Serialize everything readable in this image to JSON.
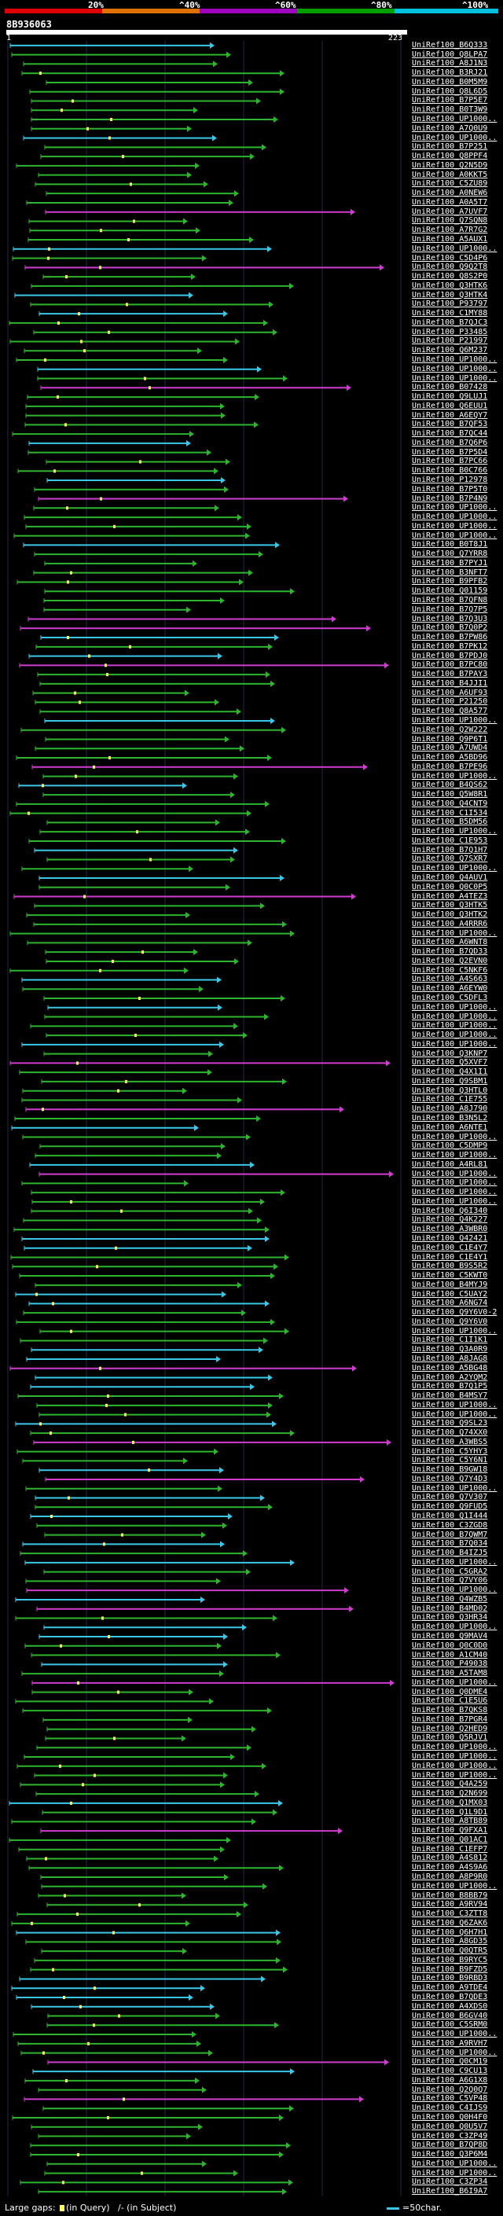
{
  "scale": {
    "ticks": [
      "20%",
      "^40%",
      "^60%",
      "^80%",
      "^100%"
    ],
    "colors": [
      "#e00000",
      "#e07000",
      "#a000c0",
      "#00a000",
      "#00c0e0"
    ]
  },
  "query": {
    "id": "8B936063",
    "start": "1",
    "end": "223"
  },
  "colors": {
    "green": "#2db52d",
    "cyan": "#3ac8e8",
    "magenta": "#d03cd0",
    "grid": "#1c2a4a",
    "dot": "#ffff66"
  },
  "hits": [
    "UniRef100_B6Q333",
    "UniRef100_Q8LPA7",
    "UniRef100_A8J1N3",
    "UniRef100_B3RJ21",
    "UniRef100_B0M5M9",
    "UniRef100_Q8L6D5",
    "UniRef100_B7P5E7",
    "UniRef100_B0T3W9",
    "UniRef100_UP1000..",
    "UniRef100_A7Q0U9",
    "UniRef100_UP1000..",
    "UniRef100_B7P251",
    "UniRef100_Q8PPF4",
    "UniRef100_Q2N5D9",
    "UniRef100_A0KKT5",
    "UniRef100_C5ZU89",
    "UniRef100_A0NEW6",
    "UniRef100_A0A5T7",
    "UniRef100_A7UVF7",
    "UniRef100_Q7SQN8",
    "UniRef100_A7R7G2",
    "UniRef100_A5AUX1",
    "UniRef100_UP1000..",
    "UniRef100_C5D4P6",
    "UniRef100_Q9Q2T8",
    "UniRef100_Q8S2P0",
    "UniRef100_Q3HTK6",
    "UniRef100_Q3HTK4",
    "UniRef100_P93797",
    "UniRef100_C1MY88",
    "UniRef100_B7QJC3",
    "UniRef100_P33485",
    "UniRef100_P21997",
    "UniRef100_Q6M237",
    "UniRef100_UP1000..",
    "UniRef100_UP1000..",
    "UniRef100_UP1000..",
    "UniRef100_B07428",
    "UniRef100_Q9LUJ1",
    "UniRef100_Q6EUU1",
    "UniRef100_A6EQY7",
    "UniRef100_B7QF53",
    "UniRef100_B7QC44",
    "UniRef100_B7Q6P6",
    "UniRef100_B7P5D4",
    "UniRef100_B7PC66",
    "UniRef100_B0C766",
    "UniRef100_P12978",
    "UniRef100_B7P5T0",
    "UniRef100_B7P4N9",
    "UniRef100_UP1000..",
    "UniRef100_UP1000..",
    "UniRef100_UP1000..",
    "UniRef100_UP1000..",
    "UniRef100_B0T8J1",
    "UniRef100_Q7YRR8",
    "UniRef100_B7PYJ1",
    "UniRef100_B3NFT7",
    "UniRef100_B9PFB2",
    "UniRef100_Q01159",
    "UniRef100_B7QFN8",
    "UniRef100_B7Q7P5",
    "UniRef100_B7Q3U3",
    "UniRef100_B7Q0P2",
    "UniRef100_B7PW86",
    "UniRef100_B7PK12",
    "UniRef100_B7PDJ0",
    "UniRef100_B7PC80",
    "UniRef100_B7PAY3",
    "UniRef100_B4JJI1",
    "UniRef100_A6UF93",
    "UniRef100_P21250",
    "UniRef100_Q8A577",
    "UniRef100_UP1000..",
    "UniRef100_Q2W222",
    "UniRef100_Q9P6T1",
    "UniRef100_A7UWD4",
    "UniRef100_A5BD96",
    "UniRef100_B7PE96",
    "UniRef100_UP1000..",
    "UniRef100_B4QS62",
    "UniRef100_Q5W8R1",
    "UniRef100_Q4CNT9",
    "UniRef100_C1I534",
    "UniRef100_B5DM56",
    "UniRef100_UP1000..",
    "UniRef100_C1E953",
    "UniRef100_B7Q1H7",
    "UniRef100_Q7SXR7",
    "UniRef100_UP1000..",
    "UniRef100_Q4AUV1",
    "UniRef100_Q0C0P5",
    "UniRef100_A4TEZ3",
    "UniRef100_Q3HTK5",
    "UniRef100_Q3HTK2",
    "UniRef100_A4RRR6",
    "UniRef100_UP1000..",
    "UniRef100_A6WNT8",
    "UniRef100_B7QD33",
    "UniRef100_Q2EVN0",
    "UniRef100_C5NKF6",
    "UniRef100_A4S663",
    "UniRef100_A6EYW0",
    "UniRef100_C5DFL3",
    "UniRef100_UP1000..",
    "UniRef100_UP1000..",
    "UniRef100_UP1000..",
    "UniRef100_UP1000..",
    "UniRef100_UP1000..",
    "UniRef100_Q3KNP7",
    "UniRef100_Q5XVF7",
    "UniRef100_Q4X1I1",
    "UniRef100_Q9SBM1",
    "UniRef100_Q3HTL0",
    "UniRef100_C1E755",
    "UniRef100_A8J790",
    "UniRef100_B3N5L2",
    "UniRef100_A6NTE1",
    "UniRef100_UP1000..",
    "UniRef100_C5DMP9",
    "UniRef100_UP1000..",
    "UniRef100_A4RL81",
    "UniRef100_UP1000..",
    "UniRef100_UP1000..",
    "UniRef100_UP1000..",
    "UniRef100_UP1000..",
    "UniRef100_Q6I340",
    "UniRef100_Q4K227",
    "UniRef100_A3WBR0",
    "UniRef100_Q42421",
    "UniRef100_C1E4Y7",
    "UniRef100_C1E4Y1",
    "UniRef100_B9S5R2",
    "UniRef100_C5KWT0",
    "UniRef100_B4MYJ9",
    "UniRef100_C5UAY2",
    "UniRef100_A6NG74",
    "UniRef100_Q9Y6V0-2",
    "UniRef100_Q9Y6V0",
    "UniRef100_UP1000..",
    "UniRef100_C1I1K1",
    "UniRef100_Q3A0R9",
    "UniRef100_A8JAG8",
    "UniRef100_A5BG48",
    "UniRef100_A2YQM2",
    "UniRef100_B7Q1P5",
    "UniRef100_B4MSY7",
    "UniRef100_UP1000..",
    "UniRef100_UP1000..",
    "UniRef100_Q9SL23",
    "UniRef100_Q74XX0",
    "UniRef100_A3WBS5",
    "UniRef100_C5YHY3",
    "UniRef100_C5Y6N1",
    "UniRef100_B9GW18",
    "UniRef100_Q7Y4D3",
    "UniRef100_UP1000..",
    "UniRef100_Q7V307",
    "UniRef100_Q9FUD5",
    "UniRef100_Q1I444",
    "UniRef100_C3ZGD8",
    "UniRef100_B7QWM7",
    "UniRef100_B7Q034",
    "UniRef100_B4IZJ5",
    "UniRef100_UP1000..",
    "UniRef100_C5GRA2",
    "UniRef100_Q7VY06",
    "UniRef100_UP1000..",
    "UniRef100_Q4WZB5",
    "UniRef100_B4MD02",
    "UniRef100_Q3HR34",
    "UniRef100_UP1000..",
    "UniRef100_Q9MAV4",
    "UniRef100_Q0C0D0",
    "UniRef100_A1CM40",
    "UniRef100_P49038",
    "UniRef100_A5TAM8",
    "UniRef100_UP1000..",
    "UniRef100_Q0DME4",
    "UniRef100_C1E5U6",
    "UniRef100_B7QKS8",
    "UniRef100_B7PGR4",
    "UniRef100_Q2HED9",
    "UniRef100_Q5RJV1",
    "UniRef100_UP1000..",
    "UniRef100_UP1000..",
    "UniRef100_UP1000..",
    "UniRef100_UP1000..",
    "UniRef100_Q4A259",
    "UniRef100_Q2N699",
    "UniRef100_Q1MX03",
    "UniRef100_Q1L9D1",
    "UniRef100_A8TB89",
    "UniRef100_Q9FXA1",
    "UniRef100_Q01AC1",
    "UniRef100_C1EFP7",
    "UniRef100_A4S812",
    "UniRef100_A4S9A6",
    "UniRef100_A8P9R0",
    "UniRef100_UP1000..",
    "UniRef100_B8BB79",
    "UniRef100_A9RV94",
    "UniRef100_C3ZTT8",
    "UniRef100_Q6ZAK6",
    "UniRef100_Q6H7H1",
    "UniRef100_A8GD35",
    "UniRef100_Q0QTR5",
    "UniRef100_B9RYC5",
    "UniRef100_B9FZD5",
    "UniRef100_B9RBD3",
    "UniRef100_A9TDE4",
    "UniRef100_B7QDE3",
    "UniRef100_A4XDS0",
    "UniRef100_B6GV40",
    "UniRef100_C5SRM0",
    "UniRef100_UP1000..",
    "UniRef100_A9RVH7",
    "UniRef100_UP1000..",
    "UniRef100_Q0CM19",
    "UniRef100_C9CU13",
    "UniRef100_A6G1X8",
    "UniRef100_Q2Q0Q7",
    "UniRef100_C5VP48",
    "UniRef100_C4IJS9",
    "UniRef100_Q0H4F0",
    "UniRef100_Q0U5V7",
    "UniRef100_C3ZP49",
    "UniRef100_B7QP8D",
    "UniRef100_Q3P6M4",
    "UniRef100_UP1000..",
    "UniRef100_UP1000..",
    "UniRef100_C3ZP34",
    "UniRef100_B6I9A7"
  ],
  "footer": {
    "large_gaps_label": "Large gaps:",
    "query_gap_note": "(in Query)",
    "subject_gap_note": "/- (in Subject)",
    "scale_note": "=50char."
  }
}
